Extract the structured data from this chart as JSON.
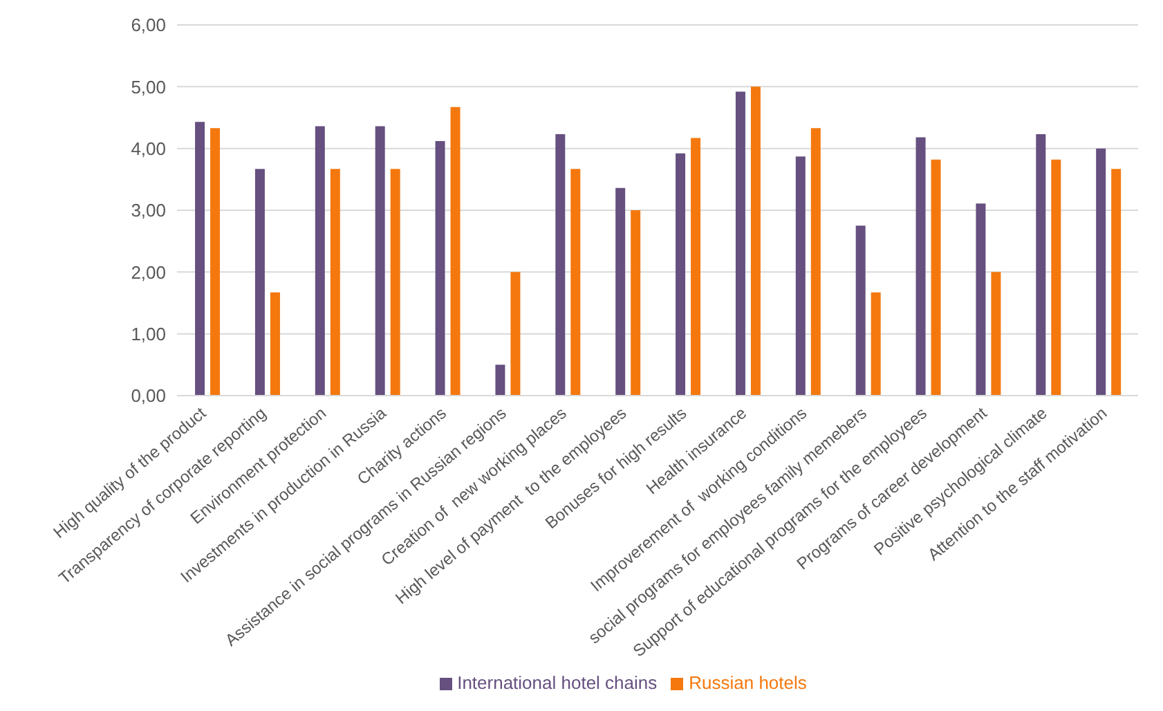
{
  "chart_data": {
    "type": "bar",
    "categories": [
      "High quality of the product",
      "Transparency of corporate reporting",
      "Environment protection",
      "Investments in production in Russia",
      "Charity actions",
      "Assistance in social programs in Russian regions",
      "Creation of  new working places",
      "High level of payment  to the employees",
      "Bonuses for high results",
      "Health insurance",
      "Improverement of  working conditions",
      "social programs for employees family memebers",
      "Support of educational programs for the employees",
      "Programs of career development",
      "Positive psychological climate",
      "Attention to the staff motivation"
    ],
    "series": [
      {
        "name": "International hotel chains",
        "color": "#65507f",
        "values": [
          4.43,
          3.67,
          4.36,
          4.36,
          4.12,
          0.5,
          4.23,
          3.36,
          3.92,
          4.92,
          3.87,
          2.75,
          4.18,
          3.11,
          4.23,
          4.0
        ]
      },
      {
        "name": "Russian hotels",
        "color": "#f4780e",
        "values": [
          4.33,
          1.67,
          3.67,
          3.67,
          4.67,
          2.0,
          3.67,
          3.0,
          4.17,
          5.0,
          4.33,
          1.67,
          3.82,
          2.0,
          3.82,
          3.67
        ]
      }
    ],
    "ylim": [
      0,
      6
    ],
    "yticks": [
      {
        "value": 0,
        "label": "0,00"
      },
      {
        "value": 1,
        "label": "1,00"
      },
      {
        "value": 2,
        "label": "2,00"
      },
      {
        "value": 3,
        "label": "3,00"
      },
      {
        "value": 4,
        "label": "4,00"
      },
      {
        "value": 5,
        "label": "5,00"
      },
      {
        "value": 6,
        "label": "6,00"
      }
    ],
    "grid": "y",
    "legend": "bottom"
  }
}
